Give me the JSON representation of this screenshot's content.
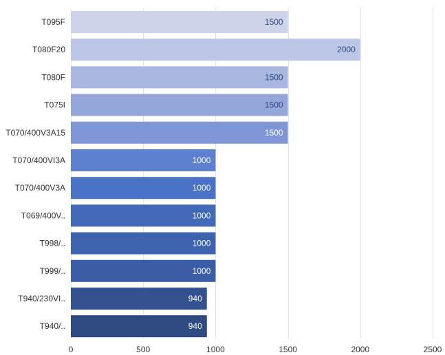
{
  "chart_data": {
    "type": "bar",
    "orientation": "horizontal",
    "categories": [
      "T095F",
      "T080F20",
      "T080F",
      "T075I",
      "T070/400V3A15",
      "T070/400VI3A",
      "T070/400V3A",
      "T069/400V..",
      "T998/..",
      "T999/..",
      "T940/230VI..",
      "T940/.."
    ],
    "values": [
      1500,
      2000,
      1500,
      1500,
      1500,
      1000,
      1000,
      1000,
      1000,
      1000,
      940,
      940
    ],
    "colors": [
      "#cdd4ea",
      "#bcc6e6",
      "#a9b6e0",
      "#95a6da",
      "#7f96d6",
      "#5d80cf",
      "#4a72c6",
      "#4268b8",
      "#3d62ae",
      "#3a5da6",
      "#34528f",
      "#2e4a80"
    ],
    "value_label_colors": [
      "#2e4a80",
      "#2e4a80",
      "#2e4a80",
      "#2e4a80",
      "#ffffff",
      "#ffffff",
      "#ffffff",
      "#ffffff",
      "#ffffff",
      "#ffffff",
      "#ffffff",
      "#ffffff"
    ],
    "xlim": [
      0,
      2500
    ],
    "xticks": [
      0,
      500,
      1000,
      1500,
      2000,
      2500
    ],
    "grid": true,
    "title": "",
    "xlabel": "",
    "ylabel": ""
  }
}
